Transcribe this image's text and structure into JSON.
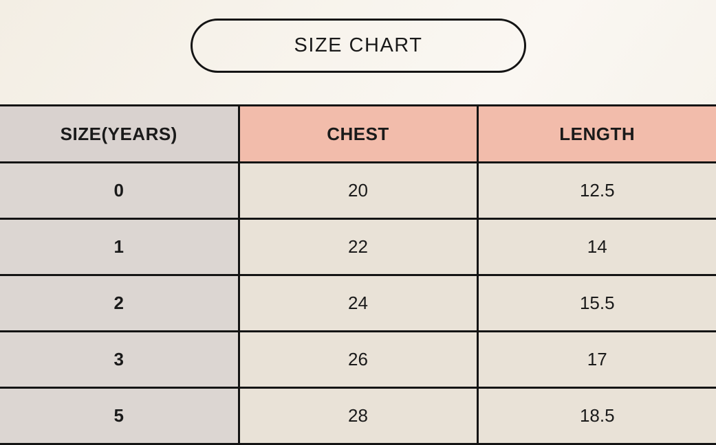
{
  "title_pill": {
    "label": "SIZE CHART"
  },
  "colors": {
    "page_background": "#f7f3ec",
    "border": "#141414",
    "text": "#1a1a1a",
    "header_size_bg": "#d9d2cf",
    "header_measure_bg": "#f2bcab",
    "size_column_bg": "#dcd6d2",
    "data_cell_bg": "#e9e2d7"
  },
  "chart_data": {
    "type": "table",
    "title": "SIZE CHART",
    "columns": [
      "SIZE(YEARS)",
      "CHEST",
      "LENGTH"
    ],
    "rows": [
      [
        "0",
        "20",
        "12.5"
      ],
      [
        "1",
        "22",
        "14"
      ],
      [
        "2",
        "24",
        "15.5"
      ],
      [
        "3",
        "26",
        "17"
      ],
      [
        "5",
        "28",
        "18.5"
      ]
    ]
  }
}
